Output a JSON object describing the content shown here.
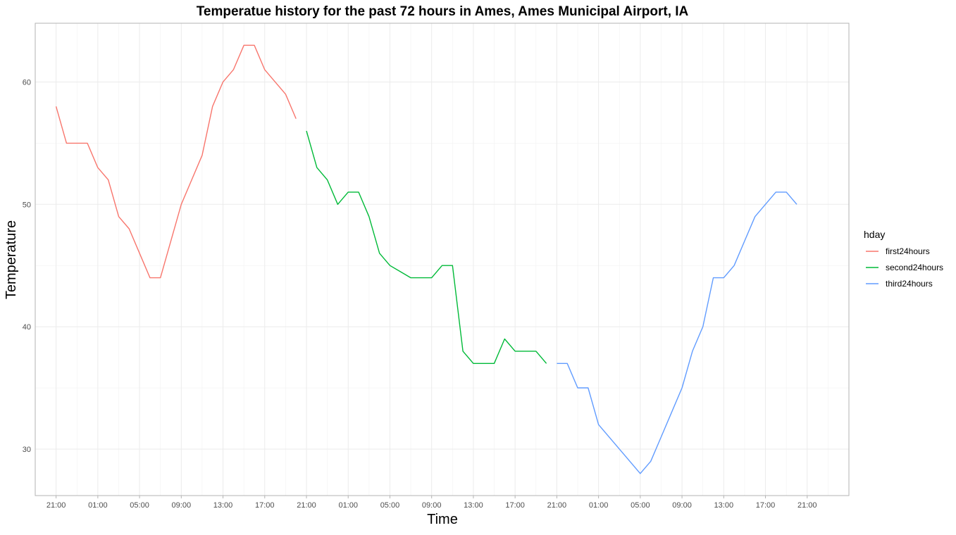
{
  "chart_data": {
    "type": "line",
    "title": "Temperatue history for the past 72 hours in Ames, Ames Municipal Airport, IA",
    "xlabel": "Time",
    "ylabel": "Temperature",
    "x_tick_labels": [
      "21:00",
      "01:00",
      "05:00",
      "09:00",
      "13:00",
      "17:00",
      "21:00",
      "01:00",
      "05:00",
      "09:00",
      "13:00",
      "17:00",
      "21:00",
      "01:00",
      "05:00",
      "09:00",
      "13:00",
      "17:00",
      "21:00"
    ],
    "x_hour_range": [
      -2,
      76
    ],
    "y_ticks": [
      30,
      40,
      50,
      60
    ],
    "y_tick_labels": [
      "30",
      "40",
      "50",
      "60"
    ],
    "ylim": [
      26.2,
      64.8
    ],
    "grid": true,
    "legend_title": "hday",
    "legend_position": "right",
    "series": [
      {
        "name": "first24hours",
        "color": "#F8766D",
        "x": [
          0,
          1,
          2,
          3,
          4,
          5,
          6,
          7,
          8,
          9,
          10,
          11,
          12,
          13,
          14,
          15,
          16,
          17,
          18,
          19,
          20,
          21,
          22,
          23
        ],
        "values": [
          58,
          55,
          55,
          55,
          53,
          52,
          49,
          48,
          46,
          44,
          44,
          47,
          50,
          52,
          54,
          58,
          60,
          61,
          63,
          63,
          61,
          60,
          59,
          57
        ]
      },
      {
        "name": "second24hours",
        "color": "#00BA38",
        "x": [
          24,
          25,
          26,
          27,
          28,
          29,
          30,
          31,
          32,
          33,
          34,
          35,
          36,
          37,
          38,
          39,
          40,
          41,
          42,
          43,
          44,
          45,
          46,
          47
        ],
        "values": [
          56,
          53,
          52,
          50,
          51,
          51,
          49,
          46,
          45,
          44.5,
          44,
          44,
          44,
          45,
          45,
          38,
          37,
          37,
          37,
          39,
          38,
          38,
          38,
          37
        ]
      },
      {
        "name": "third24hours",
        "color": "#619CFF",
        "x": [
          48,
          49,
          50,
          51,
          52,
          53,
          54,
          55,
          56,
          57,
          58,
          59,
          60,
          61,
          62,
          63,
          64,
          65,
          66,
          67,
          68,
          69,
          70,
          71,
          72
        ],
        "values": [
          37,
          37,
          35,
          35,
          32,
          31,
          30,
          29,
          28,
          29,
          31,
          33,
          35,
          38,
          40,
          44,
          44,
          45,
          47,
          49,
          50,
          51,
          51,
          50,
          null
        ]
      }
    ]
  }
}
